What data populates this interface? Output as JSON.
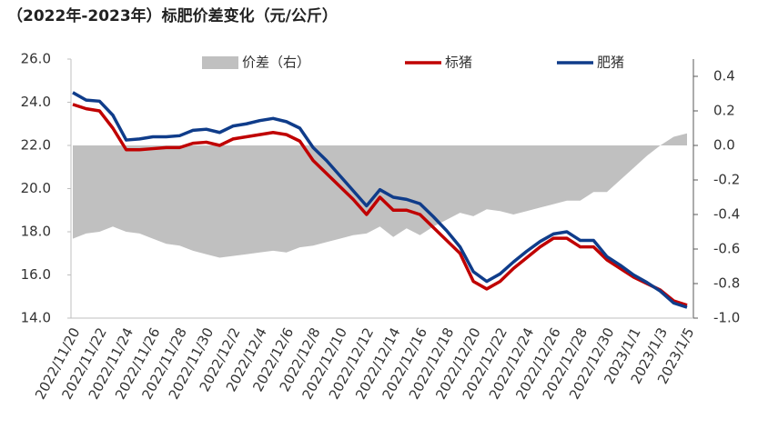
{
  "chart_data": {
    "type": "line",
    "title": "（2022年-2023年）标肥价差变化（元/公斤）",
    "categories": [
      "2022/11/20",
      null,
      "2022/11/22",
      null,
      "2022/11/24",
      null,
      "2022/11/26",
      null,
      "2022/11/28",
      null,
      "2022/11/30",
      null,
      "2022/12/2",
      null,
      "2022/12/4",
      null,
      "2022/12/6",
      null,
      "2022/12/8",
      null,
      "2022/12/10",
      null,
      "2022/12/12",
      null,
      "2022/12/14",
      null,
      "2022/12/16",
      null,
      "2022/12/18",
      null,
      "2022/12/20",
      null,
      "2022/12/22",
      null,
      "2022/12/24",
      null,
      "2022/12/26",
      null,
      "2022/12/28",
      null,
      "2022/12/30",
      null,
      "2023/1/1",
      null,
      "2023/1/3",
      null,
      "2023/1/5"
    ],
    "series": [
      {
        "name": "价差（右）",
        "type": "area",
        "axis": "y2",
        "color": "#c0c0c0",
        "values": [
          -0.54,
          -0.51,
          -0.5,
          -0.47,
          -0.5,
          -0.51,
          -0.54,
          -0.57,
          -0.58,
          -0.61,
          -0.63,
          -0.65,
          -0.64,
          -0.63,
          -0.62,
          -0.61,
          -0.62,
          -0.59,
          -0.58,
          -0.56,
          -0.54,
          -0.52,
          -0.51,
          -0.47,
          -0.53,
          -0.48,
          -0.52,
          -0.47,
          -0.43,
          -0.39,
          -0.41,
          -0.37,
          -0.38,
          -0.4,
          -0.38,
          -0.36,
          -0.34,
          -0.32,
          -0.32,
          -0.27,
          -0.27,
          -0.2,
          -0.13,
          -0.06,
          0.0,
          0.05,
          0.07
        ]
      },
      {
        "name": "标猪",
        "type": "line",
        "color": "#c00000",
        "values": [
          23.9,
          23.7,
          23.6,
          22.8,
          21.8,
          21.8,
          21.85,
          21.9,
          21.9,
          22.1,
          22.15,
          22.0,
          22.3,
          22.4,
          22.5,
          22.6,
          22.5,
          22.2,
          21.3,
          20.7,
          20.1,
          19.5,
          18.8,
          19.6,
          19.0,
          19.0,
          18.8,
          18.2,
          17.6,
          17.0,
          15.7,
          15.35,
          15.7,
          16.3,
          16.8,
          17.3,
          17.7,
          17.7,
          17.3,
          17.3,
          16.7,
          16.3,
          15.9,
          15.6,
          15.3,
          14.8,
          14.6
        ]
      },
      {
        "name": "肥猪",
        "type": "line",
        "color": "#0f3c8a",
        "values": [
          24.45,
          24.1,
          24.05,
          23.4,
          22.25,
          22.3,
          22.4,
          22.4,
          22.45,
          22.7,
          22.75,
          22.6,
          22.9,
          23.0,
          23.15,
          23.25,
          23.1,
          22.8,
          21.9,
          21.3,
          20.6,
          19.9,
          19.2,
          19.95,
          19.6,
          19.5,
          19.3,
          18.7,
          18.05,
          17.3,
          16.15,
          15.7,
          16.05,
          16.6,
          17.1,
          17.55,
          17.9,
          18.0,
          17.6,
          17.6,
          16.85,
          16.45,
          16.0,
          15.65,
          15.25,
          14.7,
          14.5
        ]
      }
    ],
    "ylim": [
      14,
      26
    ],
    "yticks": [
      {
        "value": 14,
        "label": "14.0"
      },
      {
        "value": 16,
        "label": "16.0"
      },
      {
        "value": 18,
        "label": "18.0"
      },
      {
        "value": 20,
        "label": "20.0"
      },
      {
        "value": 22,
        "label": "22.0"
      },
      {
        "value": 24,
        "label": "24.0"
      },
      {
        "value": 26,
        "label": "26.0"
      }
    ],
    "y2lim": [
      -1.0,
      0.5
    ],
    "y2ticks": [
      {
        "value": -1.0,
        "label": "-1.0"
      },
      -0.8,
      -0.6,
      -0.4,
      -0.2,
      {
        "value": 0,
        "label": "0.0"
      },
      0.2,
      0.4
    ],
    "grid": false,
    "legend": "top"
  }
}
